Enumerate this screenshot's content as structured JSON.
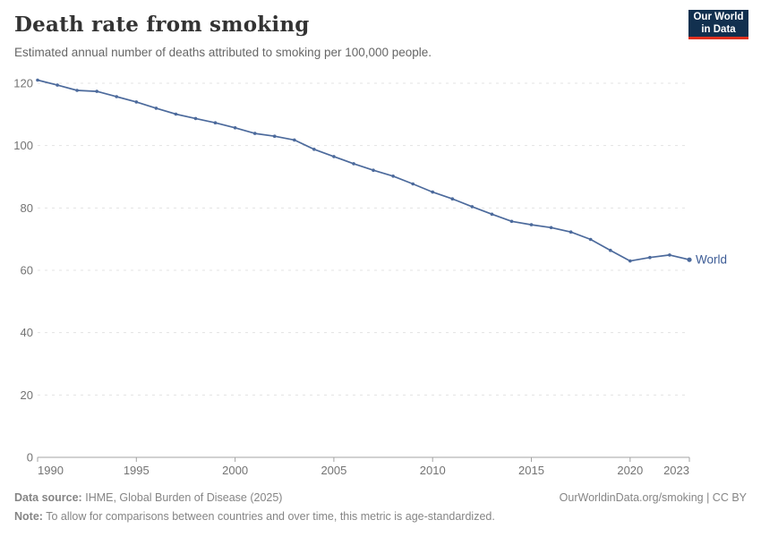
{
  "header": {
    "title": "Death rate from smoking",
    "subtitle": "Estimated annual number of deaths attributed to smoking per 100,000 people."
  },
  "logo": {
    "line1": "Our World",
    "line2": "in Data",
    "bg_color": "#12304F",
    "accent_color": "#E0301E",
    "text_color": "#FFFFFF"
  },
  "chart_data": {
    "type": "line",
    "title": "Death rate from smoking",
    "xlabel": "",
    "ylabel": "",
    "x": [
      1990,
      1991,
      1992,
      1993,
      1994,
      1995,
      1996,
      1997,
      1998,
      1999,
      2000,
      2001,
      2002,
      2003,
      2004,
      2005,
      2006,
      2007,
      2008,
      2009,
      2010,
      2011,
      2012,
      2013,
      2014,
      2015,
      2016,
      2017,
      2018,
      2019,
      2020,
      2021,
      2022,
      2023
    ],
    "series": [
      {
        "name": "World",
        "color": "#4C6A9C",
        "values": [
          121.0,
          119.4,
          117.7,
          117.4,
          115.7,
          114.0,
          112.0,
          110.1,
          108.7,
          107.3,
          105.7,
          103.9,
          103.0,
          101.8,
          98.8,
          96.5,
          94.2,
          92.1,
          90.2,
          87.7,
          85.1,
          82.9,
          80.4,
          78.0,
          75.7,
          74.6,
          73.7,
          72.3,
          69.9,
          66.4,
          63.0,
          64.1,
          64.9,
          63.4
        ]
      }
    ],
    "xlim": [
      1990,
      2023
    ],
    "ylim": [
      0,
      120
    ],
    "xticks": [
      1990,
      1995,
      2000,
      2005,
      2010,
      2015,
      2020,
      2023
    ],
    "yticks": [
      0,
      20,
      40,
      60,
      80,
      100,
      120
    ],
    "grid": "horizontal-dashed",
    "legend": "end-of-line-label",
    "entity_label": "World"
  },
  "footer": {
    "source_label": "Data source:",
    "source_text": "IHME, Global Burden of Disease (2025)",
    "note_label": "Note:",
    "note_text": "To allow for comparisons between countries and over time, this metric is age-standardized.",
    "citation": "OurWorldinData.org/smoking | CC BY"
  },
  "colors": {
    "line": "#4C6A9C",
    "entity_label": "#3D5C96",
    "grid": "#E3E3E3",
    "axis": "#A3A3A3",
    "tick_label": "#737373",
    "title": "#333333",
    "subtitle": "#666666",
    "footer": "#858585"
  }
}
